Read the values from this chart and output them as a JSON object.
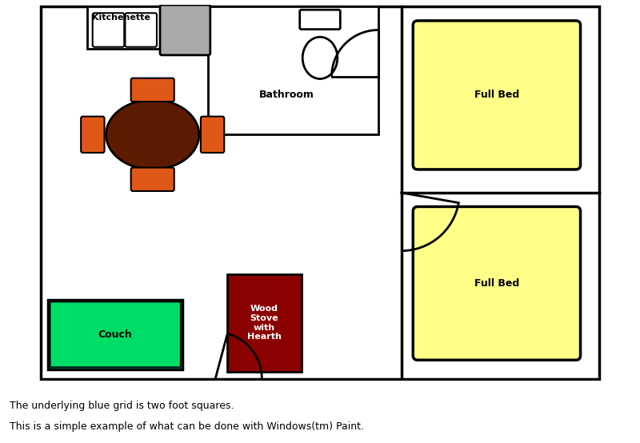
{
  "bg_color": "#ffffff",
  "grid_color": "#55dddd",
  "wall_color": "#000000",
  "text_line1": "The underlying blue grid is two foot squares.",
  "text_line2": "This is a simple example of what can be done with Windowsₜₘ Paint.",
  "text_line2_plain": "This is a simple example of what can be done with Windows(tm) Paint."
}
